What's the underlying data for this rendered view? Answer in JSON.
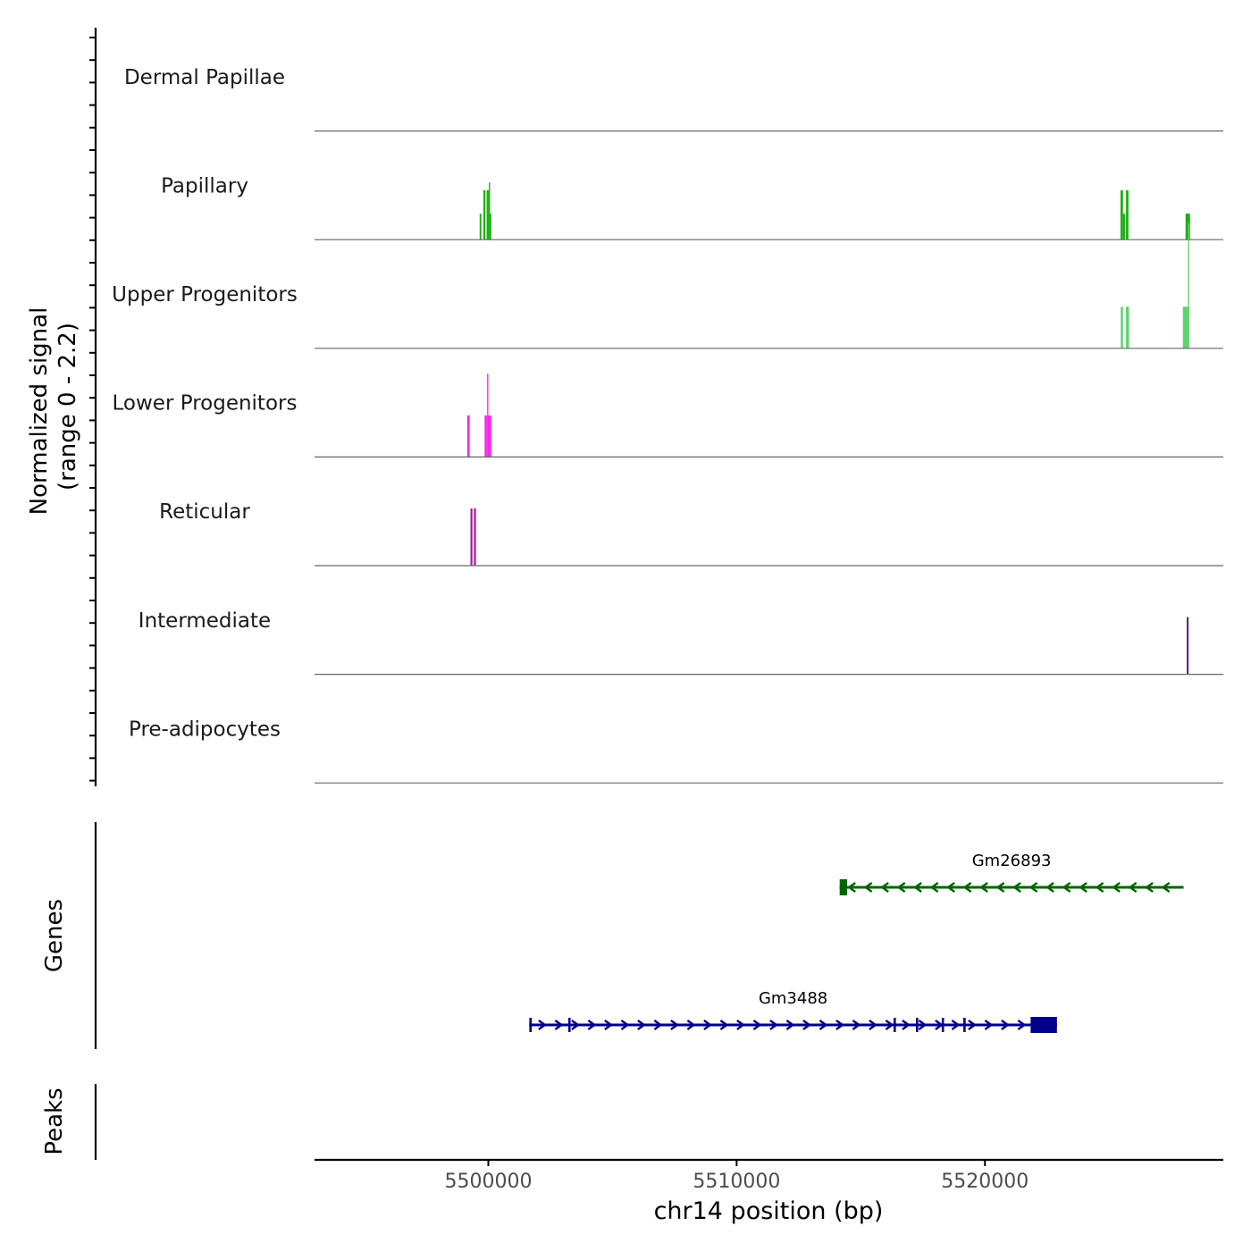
{
  "chart_data": {
    "type": "genome-coverage",
    "chromosome": "chr14",
    "xlabel": "chr14 position (bp)",
    "xlim": [
      5493000,
      5529600
    ],
    "xticks": [
      5500000,
      5510000,
      5520000
    ],
    "xtick_labels": [
      "5500000",
      "5510000",
      "5520000"
    ],
    "coverage": {
      "ylabel_line1": "Normalized signal",
      "ylabel_line2": "(range 0 - 2.2)",
      "ylim": [
        0,
        2.2
      ],
      "tracks": [
        {
          "name": "Dermal Papillae",
          "color": "#00A000",
          "peaks": []
        },
        {
          "name": "Papillary",
          "color": "#1FAE16",
          "peaks": [
            {
              "start": 5499650,
              "end": 5499720,
              "value": 1.0
            },
            {
              "start": 5499800,
              "end": 5499880,
              "value": 1.9
            },
            {
              "start": 5499930,
              "end": 5500020,
              "value": 1.9
            },
            {
              "start": 5500020,
              "end": 5500060,
              "value": 2.2
            },
            {
              "start": 5500060,
              "end": 5500120,
              "value": 1.0
            },
            {
              "start": 5525460,
              "end": 5525560,
              "value": 1.9
            },
            {
              "start": 5525560,
              "end": 5525640,
              "value": 1.0
            },
            {
              "start": 5525680,
              "end": 5525780,
              "value": 1.9
            },
            {
              "start": 5528080,
              "end": 5528260,
              "value": 1.0
            }
          ]
        },
        {
          "name": "Upper Progenitors",
          "color": "#5CD66A",
          "peaks": [
            {
              "start": 5525470,
              "end": 5525560,
              "value": 1.6
            },
            {
              "start": 5525680,
              "end": 5525800,
              "value": 1.6
            },
            {
              "start": 5527970,
              "end": 5528180,
              "value": 1.6
            },
            {
              "start": 5528180,
              "end": 5528230,
              "value": 4.8
            }
          ]
        },
        {
          "name": "Lower Progenitors",
          "color": "#F42DE3",
          "peaks": [
            {
              "start": 5499150,
              "end": 5499250,
              "value": 1.6
            },
            {
              "start": 5499850,
              "end": 5499950,
              "value": 1.6
            },
            {
              "start": 5499950,
              "end": 5499990,
              "value": 3.2
            },
            {
              "start": 5499990,
              "end": 5500120,
              "value": 1.6
            }
          ]
        },
        {
          "name": "Reticular",
          "color": "#A8189B",
          "peaks": [
            {
              "start": 5499280,
              "end": 5499360,
              "value": 2.2
            },
            {
              "start": 5499420,
              "end": 5499500,
              "value": 2.2
            }
          ]
        },
        {
          "name": "Intermediate",
          "color": "#4B1478",
          "peaks": [
            {
              "start": 5528130,
              "end": 5528200,
              "value": 2.2
            }
          ]
        },
        {
          "name": "Pre-adipocytes",
          "color": "#2B0E5C",
          "peaks": []
        }
      ]
    },
    "genes": {
      "ylabel": "Genes",
      "items": [
        {
          "name": "Gm26893",
          "strand": "-",
          "color": "#006400",
          "start": 5514150,
          "end": 5528000,
          "exons": [
            {
              "start": 5514150,
              "end": 5514450
            }
          ]
        },
        {
          "name": "Gm3488",
          "strand": "+",
          "color": "#00008B",
          "start": 5501650,
          "end": 5522900,
          "exons": [
            {
              "start": 5501650,
              "end": 5501750
            },
            {
              "start": 5503220,
              "end": 5503290
            },
            {
              "start": 5516320,
              "end": 5516400
            },
            {
              "start": 5517220,
              "end": 5517300
            },
            {
              "start": 5518260,
              "end": 5518340
            },
            {
              "start": 5519130,
              "end": 5519210
            },
            {
              "start": 5521840,
              "end": 5522900
            }
          ]
        }
      ]
    },
    "peaks_track": {
      "ylabel": "Peaks",
      "regions": []
    }
  }
}
